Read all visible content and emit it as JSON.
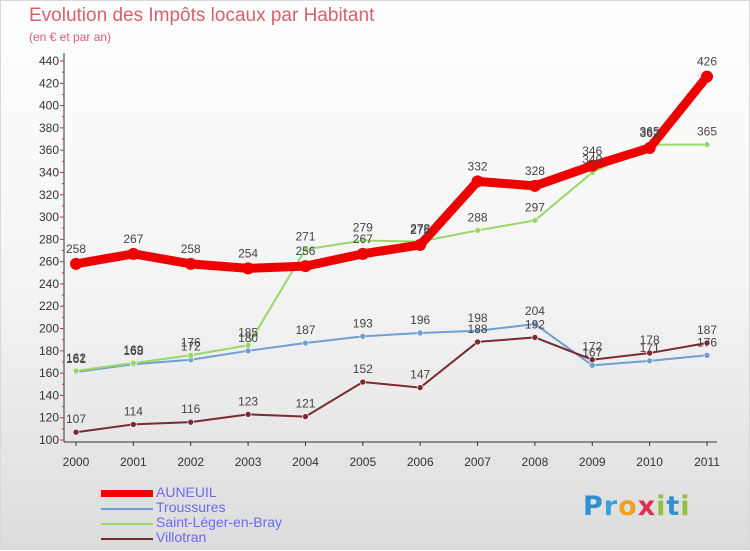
{
  "header": {
    "title": "Evolution des Impôts locaux par Habitant",
    "subtitle": "(en € et par an)"
  },
  "logo": {
    "text": "Proxiti",
    "letters": [
      "P",
      "r",
      "o",
      "x",
      "i",
      "t",
      "i"
    ]
  },
  "colors": {
    "axis": "#333333",
    "tick_text": "#333333",
    "legend_text": "#6a6af0",
    "title": "#d8606a",
    "logo": [
      "#2f8fcf",
      "#3aa0d8",
      "#f0a020",
      "#e03050",
      "#8fc040",
      "#2f8fcf",
      "#8fc040"
    ]
  },
  "chart_data": {
    "type": "line",
    "title": "Evolution des Impôts locaux par Habitant",
    "subtitle": "(en € et par an)",
    "xlabel": "",
    "ylabel": "",
    "x": [
      "2000",
      "2001",
      "2002",
      "2003",
      "2004",
      "2005",
      "2006",
      "2007",
      "2008",
      "2009",
      "2010",
      "2011"
    ],
    "ylim": [
      100,
      440
    ],
    "yticks": [
      100,
      120,
      140,
      160,
      180,
      200,
      220,
      240,
      260,
      280,
      300,
      320,
      340,
      360,
      380,
      400,
      420,
      440
    ],
    "grid": false,
    "legend_position": "bottom-left",
    "series": [
      {
        "name": "AUNEUIL",
        "color": "#ee0000",
        "emphasis": true,
        "values": [
          258,
          267,
          258,
          254,
          256,
          267,
          275,
          332,
          328,
          346,
          362,
          426
        ]
      },
      {
        "name": "Troussures",
        "color": "#6e9fd2",
        "values": [
          161,
          168,
          172,
          180,
          187,
          193,
          196,
          198,
          204,
          167,
          171,
          176
        ]
      },
      {
        "name": "Saint-Léger-en-Bray",
        "color": "#98d76a",
        "values": [
          162,
          169,
          176,
          185,
          271,
          279,
          278,
          288,
          297,
          340,
          365,
          365
        ]
      },
      {
        "name": "Villotran",
        "color": "#7a2a30",
        "values": [
          107,
          114,
          116,
          123,
          121,
          152,
          147,
          188,
          192,
          172,
          178,
          187
        ]
      }
    ]
  }
}
